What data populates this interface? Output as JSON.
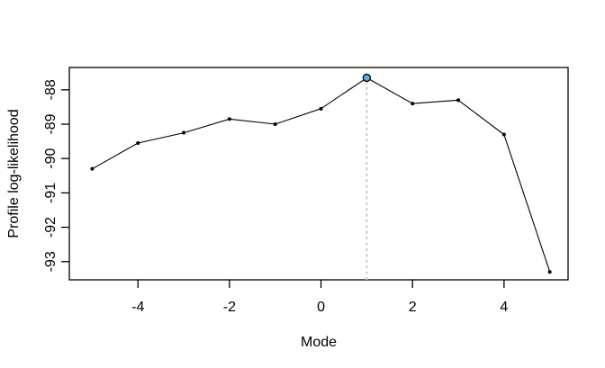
{
  "figure": {
    "background": "#ffffff",
    "frame_color": "#000000"
  },
  "chart_data": {
    "type": "line",
    "title": "",
    "xlabel": "Mode",
    "ylabel": "Profile log-likelihood",
    "x": [
      -5,
      -4,
      -3,
      -2,
      -1,
      0,
      1,
      2,
      3,
      4,
      5
    ],
    "y": [
      -90.3,
      -89.55,
      -89.25,
      -88.85,
      -89.0,
      -88.55,
      -87.65,
      -88.4,
      -88.3,
      -89.3,
      -93.3
    ],
    "xticks": [
      -4,
      -2,
      0,
      2,
      4
    ],
    "yticks": [
      -93,
      -92,
      -91,
      -90,
      -89,
      -88
    ],
    "xlim": [
      -5.5,
      5.4
    ],
    "ylim": [
      -93.53,
      -87.35
    ],
    "grid": false,
    "legend": null,
    "line_color": "#000000",
    "point_color": "#000000",
    "highlight_point": {
      "x": 1,
      "y": -87.65,
      "fill": "#5FABDF",
      "stroke": "#000000"
    },
    "vline": {
      "x": 1,
      "style": "dotted",
      "color": "#C9C9C9"
    }
  }
}
